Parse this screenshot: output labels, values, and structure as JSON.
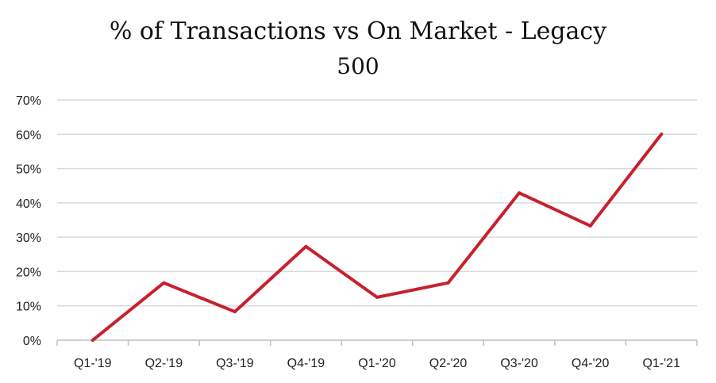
{
  "chart_data": {
    "type": "line",
    "title_line1": "% of Transactions vs On Market - Legacy",
    "title_line2": "500",
    "categories": [
      "Q1-'19",
      "Q2-'19",
      "Q3-'19",
      "Q4-'19",
      "Q1-'20",
      "Q2-'20",
      "Q3-'20",
      "Q4-'20",
      "Q1-'21"
    ],
    "series": [
      {
        "values": [
          0,
          16.7,
          8.3,
          27.3,
          12.5,
          16.7,
          42.9,
          33.3,
          60.0
        ],
        "color": "#C8202E"
      }
    ],
    "ylim": [
      0,
      70
    ],
    "yticks": [
      0,
      10,
      20,
      30,
      40,
      50,
      60,
      70
    ],
    "ytick_labels": [
      "0%",
      "10%",
      "20%",
      "30%",
      "40%",
      "50%",
      "60%",
      "70%"
    ],
    "grid": true,
    "gridline_color": "#D9D9D9",
    "xlabel": "",
    "ylabel": "",
    "legend": "none"
  }
}
